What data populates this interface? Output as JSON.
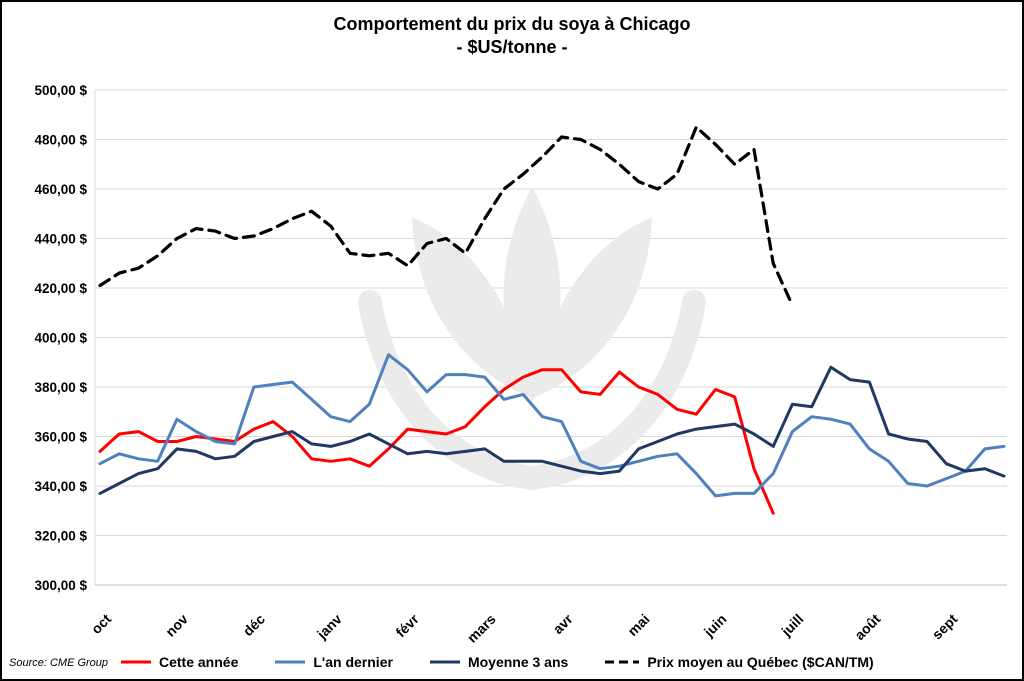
{
  "source": "Source: CME Group",
  "colors": {
    "this_year": "#FF0000",
    "last_year": "#4F81BD",
    "avg_3y": "#1F3864",
    "quebec": "#000000",
    "grid": "#D9D9D9",
    "axis": "#BFBFBF",
    "watermark": "#EBEBEB"
  },
  "chart_data": {
    "type": "line",
    "title": "Comportement du prix du soya à Chicago",
    "subtitle": "- $US/tonne -",
    "xlabel": "",
    "ylabel": "",
    "legend_position": "bottom",
    "grid": "horizontal",
    "x_axis": {
      "categories": [
        "oct",
        "nov",
        "déc",
        "janv",
        "févr",
        "mars",
        "avr",
        "mai",
        "juin",
        "juill",
        "août",
        "sept"
      ],
      "points_per_month": 4
    },
    "y_axis": {
      "min": 300,
      "max": 500,
      "step": 20,
      "tick_labels": [
        "300,00 $",
        "320,00 $",
        "340,00 $",
        "360,00 $",
        "380,00 $",
        "400,00 $",
        "420,00 $",
        "440,00 $",
        "460,00 $",
        "480,00 $",
        "500,00 $"
      ]
    },
    "series": [
      {
        "id": "this-year",
        "name": "Cette année",
        "color": "#FF0000",
        "width": 3,
        "dash": null,
        "values": [
          354,
          361,
          362,
          358,
          358,
          360,
          359,
          358,
          363,
          366,
          360,
          351,
          350,
          351,
          348,
          355,
          363,
          362,
          361,
          364,
          372,
          379,
          384,
          387,
          387,
          378,
          377,
          386,
          380,
          377,
          371,
          369,
          379,
          376,
          347,
          329
        ]
      },
      {
        "id": "last-year",
        "name": "L'an dernier",
        "color": "#4F81BD",
        "width": 3,
        "dash": null,
        "values": [
          349,
          353,
          351,
          350,
          367,
          362,
          358,
          357,
          380,
          381,
          382,
          375,
          368,
          366,
          373,
          393,
          387,
          378,
          385,
          385,
          384,
          375,
          377,
          368,
          366,
          350,
          347,
          348,
          350,
          352,
          353,
          345,
          336,
          337,
          337,
          345,
          362,
          368,
          367,
          365,
          355,
          350,
          341,
          340,
          343,
          346,
          355,
          356
        ]
      },
      {
        "id": "avg-3y",
        "name": "Moyenne 3 ans",
        "color": "#1F3864",
        "width": 3,
        "dash": null,
        "values": [
          337,
          341,
          345,
          347,
          355,
          354,
          351,
          352,
          358,
          360,
          362,
          357,
          356,
          358,
          361,
          357,
          353,
          354,
          353,
          354,
          355,
          350,
          350,
          350,
          348,
          346,
          345,
          346,
          355,
          358,
          361,
          363,
          364,
          365,
          361,
          356,
          373,
          372,
          388,
          383,
          382,
          361,
          359,
          358,
          349,
          346,
          347,
          344
        ]
      },
      {
        "id": "quebec",
        "name": "Prix moyen au Québec ($CAN/TM)",
        "color": "#000000",
        "width": 3.2,
        "dash": "11,7",
        "values": [
          421,
          426,
          428,
          433,
          440,
          444,
          443,
          440,
          441,
          444,
          448,
          451,
          445,
          434,
          433,
          434,
          429,
          438,
          440,
          434,
          448,
          460,
          466,
          473,
          481,
          480,
          476,
          470,
          463,
          460,
          466,
          485,
          478,
          470,
          476,
          430,
          413
        ]
      }
    ]
  }
}
